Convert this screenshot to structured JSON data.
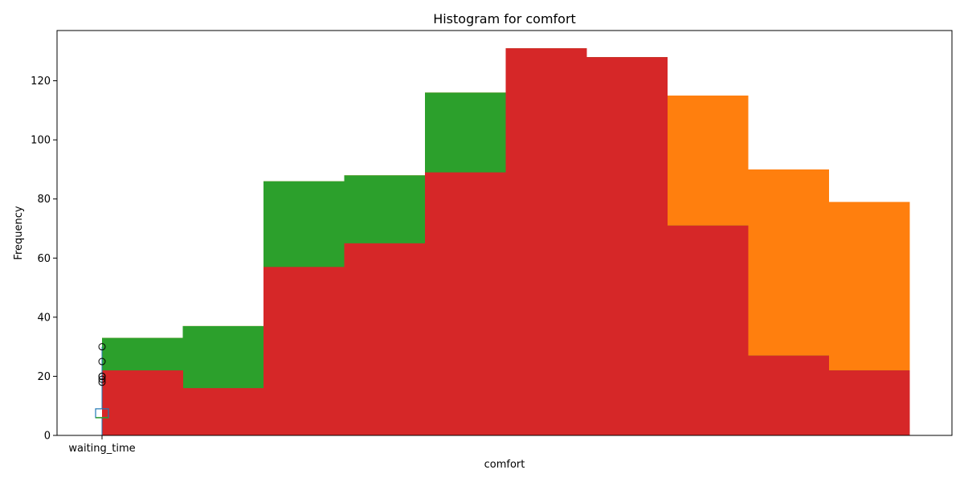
{
  "chart_data": {
    "type": "bar",
    "title": "Histogram for comfort",
    "xlabel": "comfort",
    "ylabel": "Frequency",
    "ylim": [
      0,
      137
    ],
    "yticks": [
      0,
      20,
      40,
      60,
      80,
      100,
      120
    ],
    "xtick_labels": [
      "waiting_time"
    ],
    "grid": false,
    "histogram": {
      "bins": 10,
      "series": [
        {
          "color": "#ff7f0e",
          "values": [
            33,
            37,
            86,
            88,
            116,
            131,
            128,
            115,
            90,
            79
          ]
        },
        {
          "color": "#2ca02c",
          "values": [
            33,
            37,
            86,
            88,
            116,
            131,
            128,
            71,
            27,
            22
          ]
        },
        {
          "color": "#d62728",
          "values": [
            22,
            16,
            57,
            65,
            89,
            131,
            128,
            71,
            27,
            22
          ]
        }
      ]
    },
    "boxplot": {
      "label": "waiting_time",
      "color": "#1f77b4",
      "median_color": "#2ca02c",
      "q1": 6,
      "median": 6,
      "q3": 9,
      "whisker_low": 0,
      "whisker_high": 30,
      "outliers": [
        18,
        19,
        20,
        20,
        25,
        30
      ]
    }
  }
}
